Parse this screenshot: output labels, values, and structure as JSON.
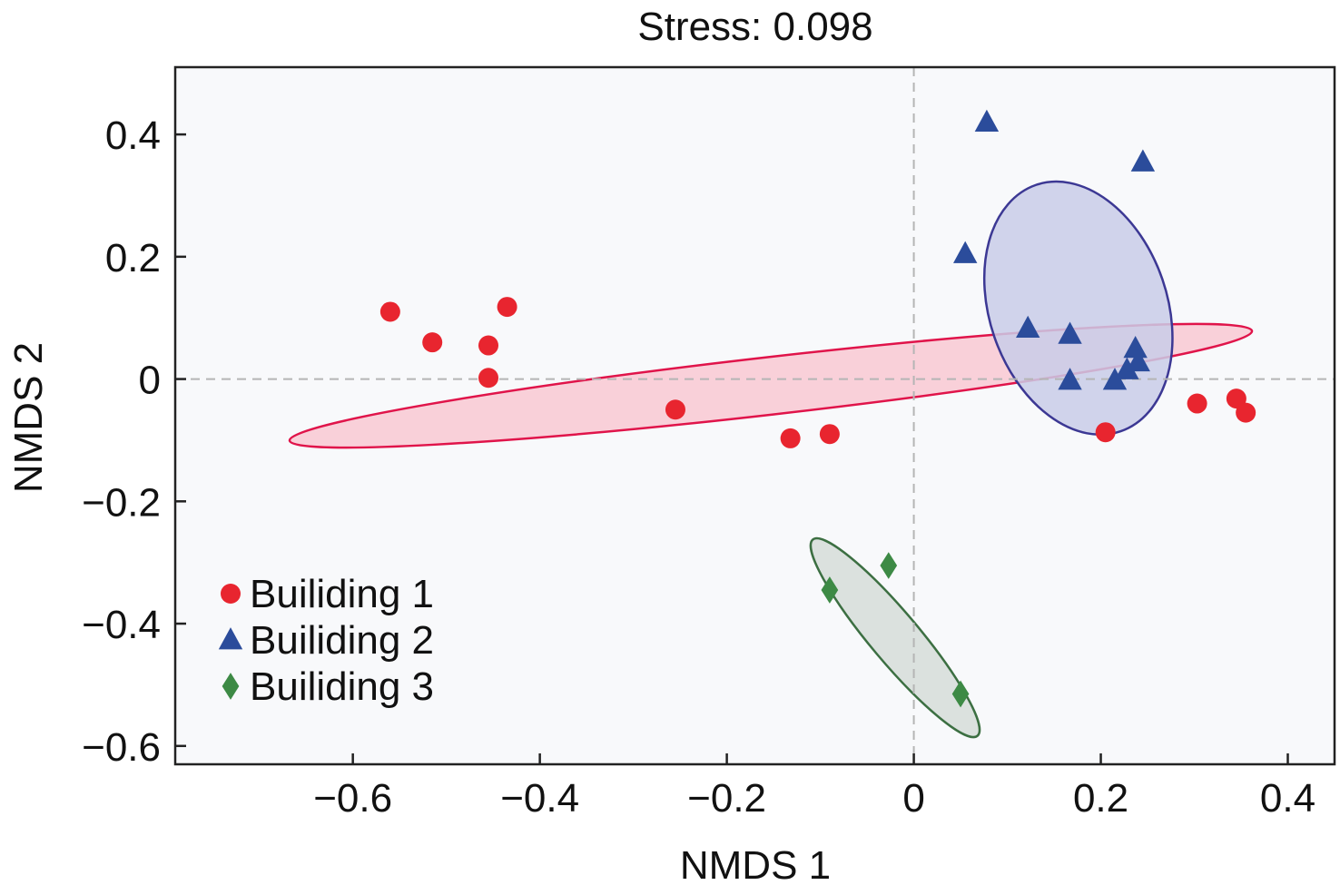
{
  "chart_data": {
    "type": "scatter",
    "title": "Stress: 0.098",
    "xlabel": "NMDS 1",
    "ylabel": "NMDS 2",
    "xlim": [
      -0.79,
      0.45
    ],
    "ylim": [
      -0.63,
      0.51
    ],
    "xticks": [
      -0.6,
      -0.4,
      -0.2,
      0,
      0.2,
      0.4
    ],
    "yticks": [
      0.4,
      0.2,
      0,
      -0.2,
      -0.4,
      -0.6
    ],
    "xtick_labels": [
      "−0.6",
      "−0.4",
      "−0.2",
      "0",
      "0.2",
      "0.4"
    ],
    "ytick_labels": [
      "0.4",
      "0.2",
      "0",
      "−0.2",
      "−0.4",
      "−0.6"
    ],
    "grid": false,
    "reference_lines": {
      "x": 0,
      "y": 0,
      "style": "dashed"
    },
    "legend_position": "bottom-left",
    "background": "#f8f9fb",
    "series": [
      {
        "name": "Builiding 1",
        "marker": "circle",
        "color": "#e8252f",
        "ellipse_fill": "#f9c9d2",
        "ellipse_stroke": "#e0144a",
        "ellipse": {
          "cx": -0.153,
          "cy": -0.011,
          "rx": 0.518,
          "ry": 0.047,
          "angle_deg": -6.5
        },
        "points": [
          [
            -0.56,
            0.11
          ],
          [
            -0.515,
            0.06
          ],
          [
            -0.455,
            0.055
          ],
          [
            -0.435,
            0.118
          ],
          [
            -0.455,
            0.002
          ],
          [
            -0.255,
            -0.05
          ],
          [
            -0.132,
            -0.097
          ],
          [
            -0.09,
            -0.09
          ],
          [
            0.205,
            -0.087
          ],
          [
            0.303,
            -0.04
          ],
          [
            0.345,
            -0.032
          ],
          [
            0.355,
            -0.055
          ]
        ]
      },
      {
        "name": "Builiding 2",
        "marker": "triangle",
        "color": "#2b4c9b",
        "ellipse_fill": "#c9cde8",
        "ellipse_stroke": "#3c3894",
        "ellipse": {
          "cx": 0.176,
          "cy": 0.116,
          "rx": 0.095,
          "ry": 0.213,
          "angle_deg": -19
        },
        "points": [
          [
            0.078,
            0.42
          ],
          [
            0.245,
            0.355
          ],
          [
            0.055,
            0.205
          ],
          [
            0.122,
            0.083
          ],
          [
            0.167,
            0.073
          ],
          [
            0.237,
            0.05
          ],
          [
            0.167,
            -0.002
          ],
          [
            0.215,
            -0.002
          ],
          [
            0.228,
            0.015
          ],
          [
            0.24,
            0.028
          ]
        ]
      },
      {
        "name": "Builiding 3",
        "marker": "diamond",
        "color": "#3d8a45",
        "ellipse_fill": "#d6ddd8",
        "ellipse_stroke": "#3c6f42",
        "ellipse": {
          "cx": -0.02,
          "cy": -0.423,
          "rx": 0.137,
          "ry": 0.04,
          "angle_deg": 50
        },
        "points": [
          [
            -0.027,
            -0.305
          ],
          [
            -0.09,
            -0.345
          ],
          [
            0.05,
            -0.515
          ]
        ]
      }
    ]
  }
}
